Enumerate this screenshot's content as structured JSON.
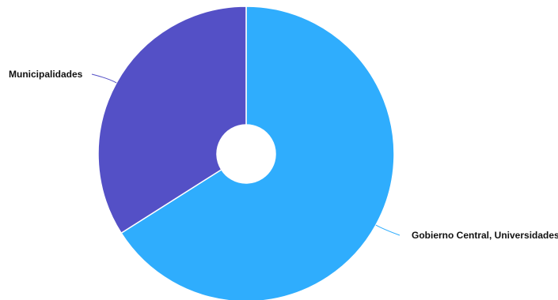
{
  "chart_data": {
    "type": "pie",
    "variant": "donut",
    "slices": [
      {
        "label": "Gobierno Central, Universidades",
        "value": 66,
        "color": "#2fadfd"
      },
      {
        "label": "Municipalidades",
        "value": 34,
        "color": "#5450c6"
      }
    ],
    "legend": "none"
  }
}
